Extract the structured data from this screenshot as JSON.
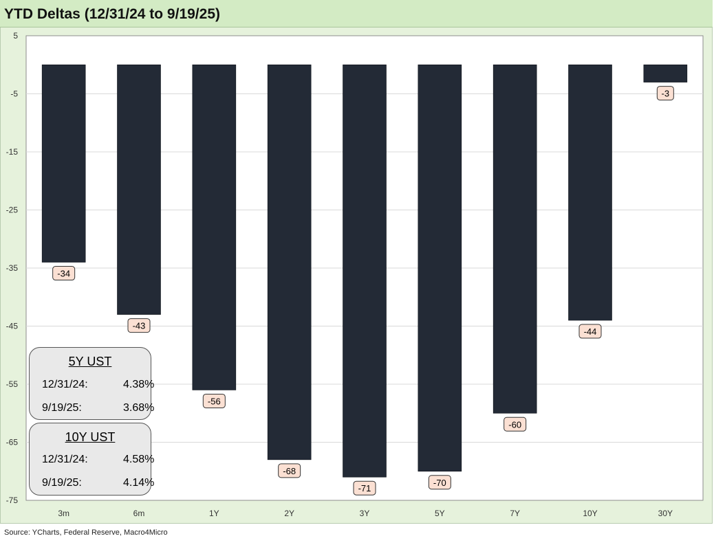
{
  "title": "YTD Deltas (12/31/24 to 9/19/25)",
  "source": "Source: YCharts, Federal Reserve, Macro4Micro",
  "colors": {
    "bar": "#232a36",
    "plot_bg": "#ffffff",
    "frame_bg": "#e6f2dc",
    "title_bg": "#d3ebc4",
    "gridline": "#d9d9d9",
    "label_bg": "#fbe0d3"
  },
  "chart_data": {
    "type": "bar",
    "categories": [
      "3m",
      "6m",
      "1Y",
      "2Y",
      "3Y",
      "5Y",
      "7Y",
      "10Y",
      "30Y"
    ],
    "values": [
      -34,
      -43,
      -56,
      -68,
      -71,
      -70,
      -60,
      -44,
      -3
    ],
    "data_labels": [
      "-34",
      "-43",
      "-56",
      "-68",
      "-71",
      "-70",
      "-60",
      "-44",
      "-3"
    ],
    "yticks": [
      5,
      -5,
      -15,
      -25,
      -35,
      -45,
      -55,
      -65,
      -75
    ],
    "ylim": [
      -75,
      5
    ],
    "grid": "horizontal",
    "legend": "none"
  },
  "info_boxes": [
    {
      "title": "5Y UST",
      "rows": [
        {
          "date": "12/31/24:",
          "value": "4.38%"
        },
        {
          "date": "9/19/25:",
          "value": "3.68%"
        }
      ]
    },
    {
      "title": "10Y UST",
      "rows": [
        {
          "date": "12/31/24:",
          "value": "4.58%"
        },
        {
          "date": "9/19/25:",
          "value": "4.14%"
        }
      ]
    }
  ]
}
